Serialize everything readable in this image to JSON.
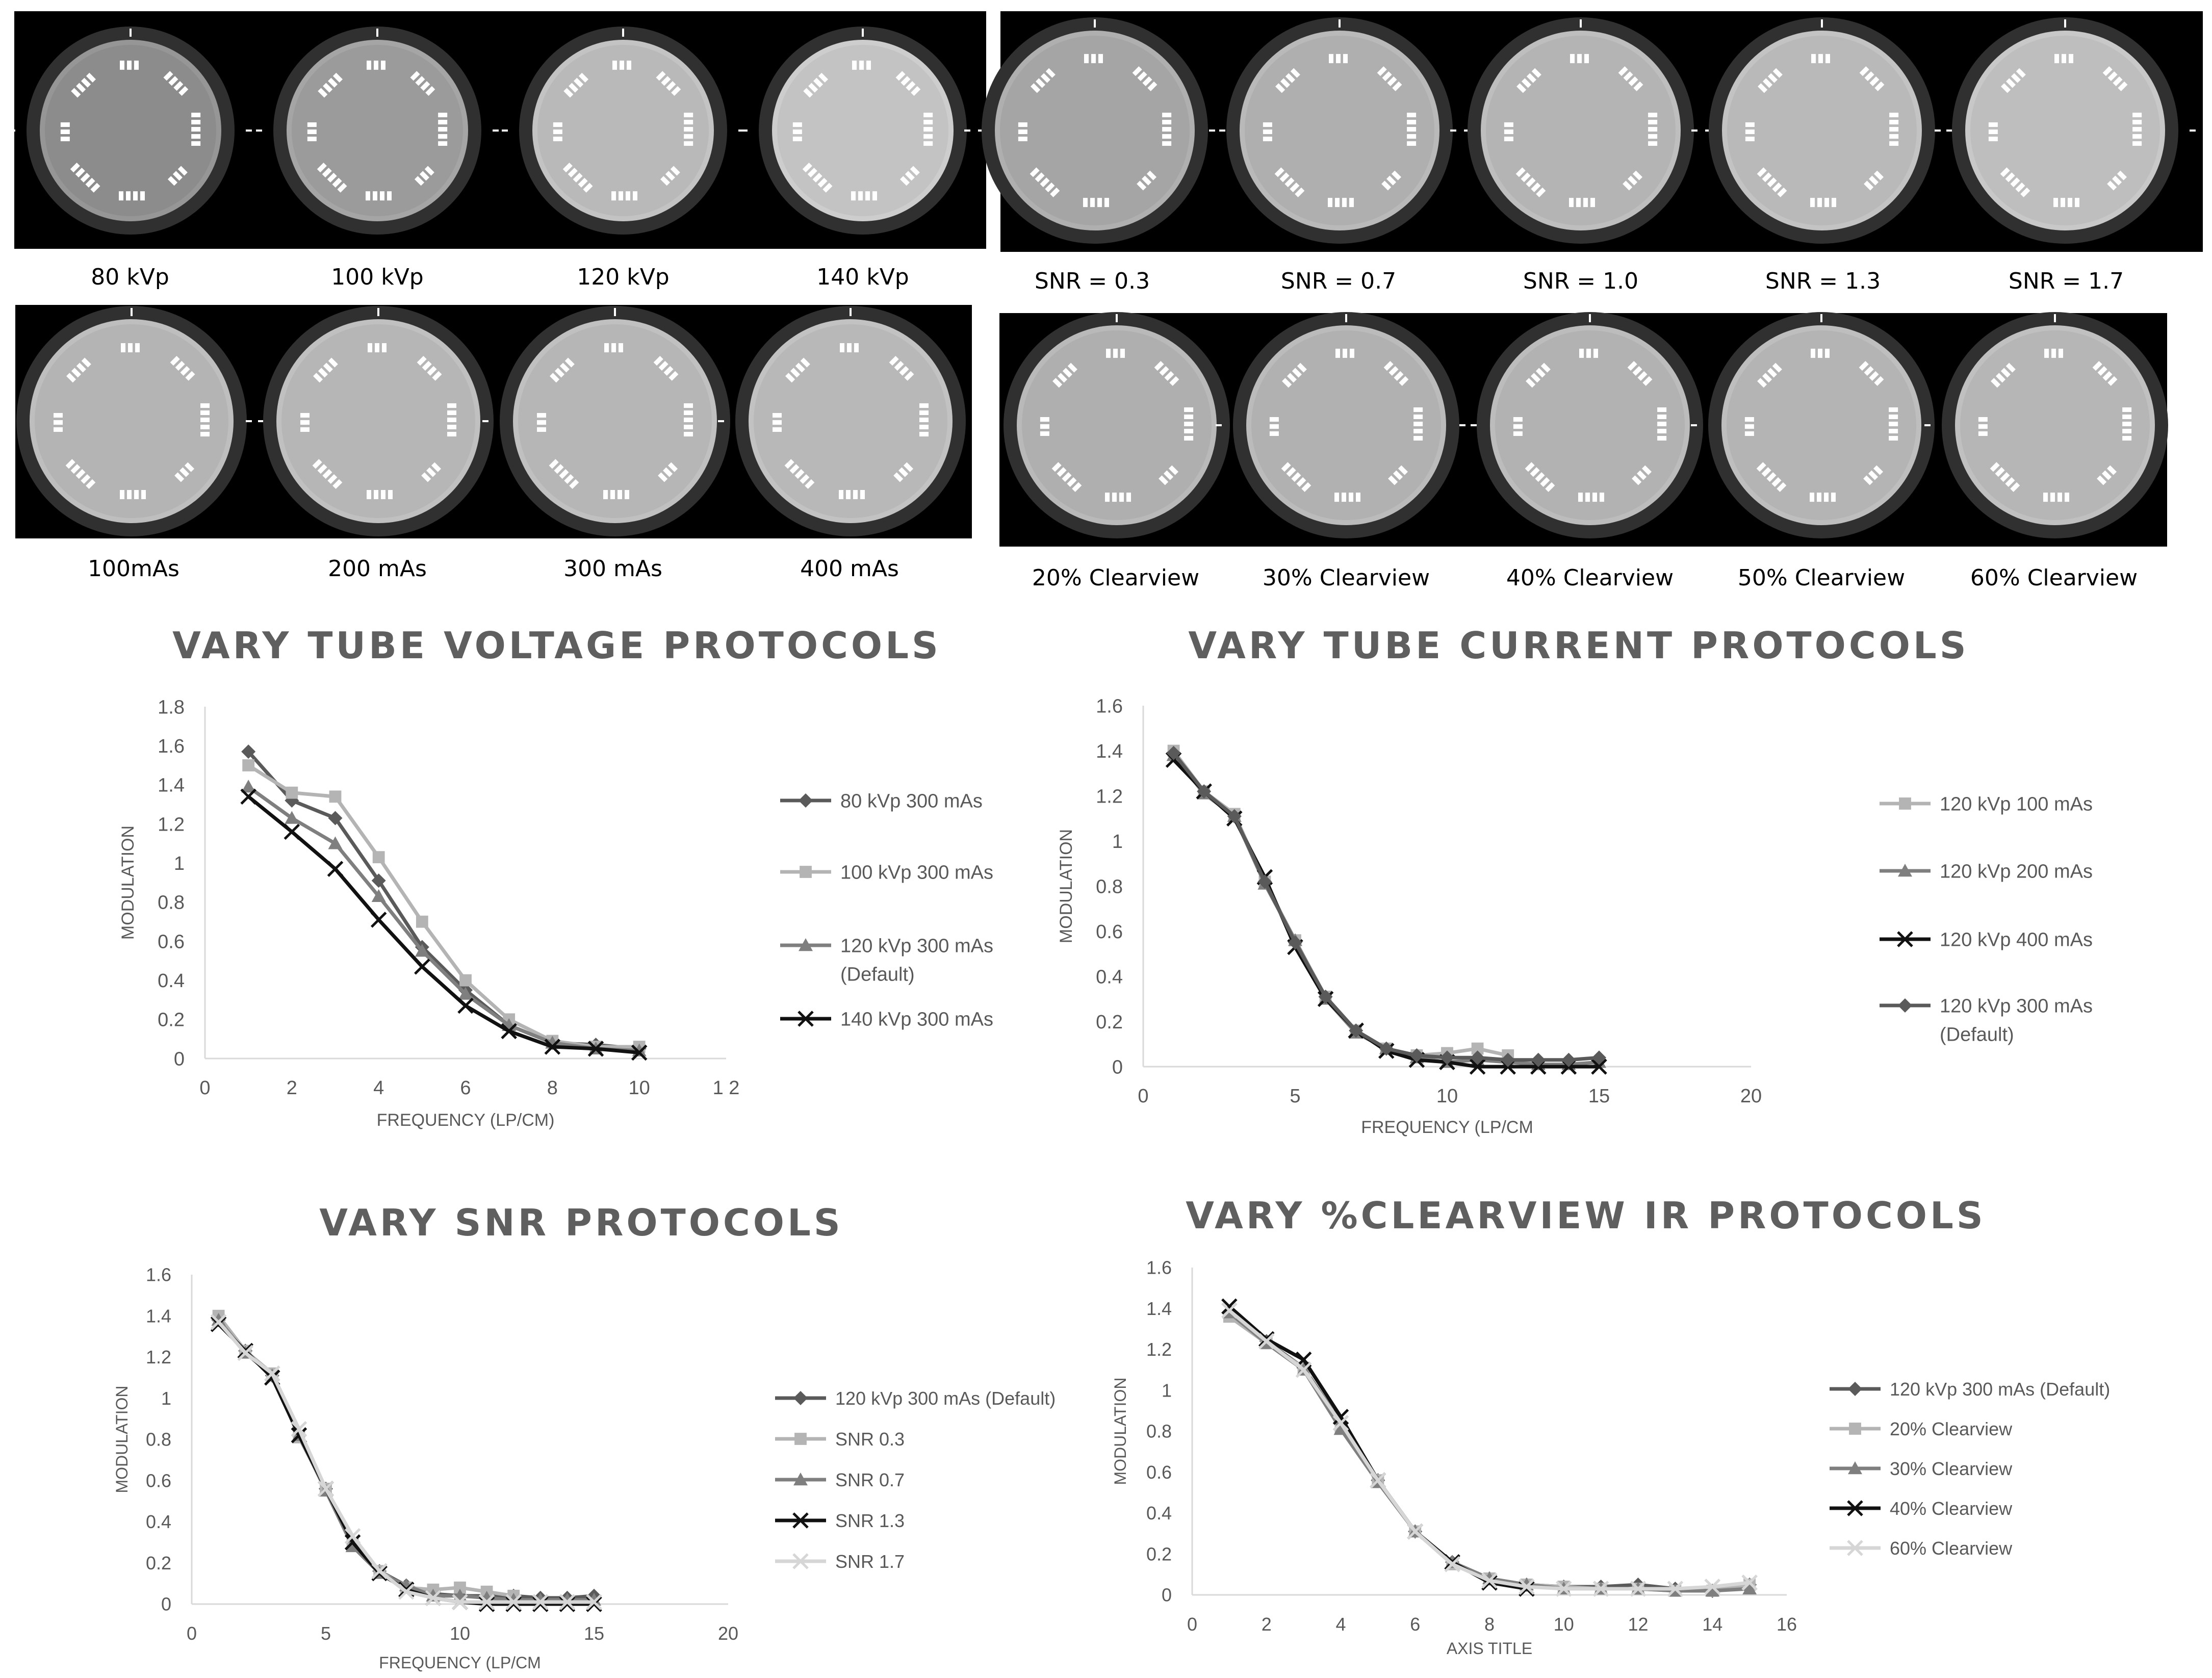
{
  "image_panels": [
    {
      "id": "kvp",
      "labels": [
        "80 kVp",
        "100 kVp",
        "120 kVp",
        "140 kVp"
      ]
    },
    {
      "id": "snr",
      "labels": [
        "SNR = 0.3",
        "SNR = 0.7",
        "SNR = 1.0",
        "SNR = 1.3",
        "SNR = 1.7"
      ]
    },
    {
      "id": "mas",
      "labels": [
        "100mAs",
        "200 mAs",
        "300 mAs",
        "400 mAs"
      ]
    },
    {
      "id": "clearview",
      "labels": [
        "20% Clearview",
        "30% Clearview",
        "40% Clearview",
        "50% Clearview",
        "60% Clearview"
      ]
    }
  ],
  "colors": {
    "dark": "#5a5a5a",
    "light": "#b4b4b4",
    "mid": "#7f7f7f",
    "black": "#111111",
    "lightest": "#d6d6d6",
    "axis": "#d9d9d9",
    "text": "#595959",
    "title": "#5f5f5f"
  },
  "chart_data": [
    {
      "type": "line",
      "title": "VARY TUBE VOLTAGE  PROTOCOLS",
      "xlabel": "FREQUENCY (LP/CM)",
      "ylabel": "MODULATION",
      "xlim": [
        0,
        12
      ],
      "ylim": [
        0,
        1.8
      ],
      "xticks": [
        "0",
        "2",
        "4",
        "6",
        "8",
        "10",
        "1 2"
      ],
      "yticks": [
        "0",
        "0.2",
        "0.4",
        "0.6",
        "0.8",
        "1",
        "1.2",
        "1.4",
        "1.6",
        "1.8"
      ],
      "grid": false,
      "legend_position": "right",
      "series": [
        {
          "name": "80 kVp 300 mAs",
          "marker": "diamond",
          "color": "dark",
          "x": [
            1,
            2,
            3,
            4,
            5,
            6,
            7,
            8,
            9,
            10
          ],
          "y": [
            1.57,
            1.32,
            1.23,
            0.91,
            0.57,
            0.35,
            0.17,
            0.08,
            0.07,
            0.05
          ]
        },
        {
          "name": "100 kVp 300 mAs",
          "marker": "square",
          "color": "light",
          "x": [
            1,
            2,
            3,
            4,
            5,
            6,
            7,
            8,
            9,
            10
          ],
          "y": [
            1.5,
            1.36,
            1.34,
            1.03,
            0.7,
            0.4,
            0.2,
            0.09,
            0.06,
            0.06
          ]
        },
        {
          "name": "120 kVp 300 mAs",
          "name_line2": "(Default)",
          "marker": "triangle",
          "color": "mid",
          "x": [
            1,
            2,
            3,
            4,
            5,
            6,
            7,
            8,
            9,
            10
          ],
          "y": [
            1.39,
            1.23,
            1.1,
            0.83,
            0.55,
            0.33,
            0.17,
            0.08,
            0.05,
            0.04
          ]
        },
        {
          "name": "140 kVp 300 mAs",
          "marker": "x",
          "color": "black",
          "x": [
            1,
            2,
            3,
            4,
            5,
            6,
            7,
            8,
            9,
            10
          ],
          "y": [
            1.34,
            1.16,
            0.97,
            0.71,
            0.47,
            0.27,
            0.14,
            0.06,
            0.05,
            0.03
          ]
        }
      ]
    },
    {
      "type": "line",
      "title": "VARY TUBE CURRENT PROTOCOLS",
      "xlabel": "FREQUENCY (LP/CM",
      "ylabel": "MODULATION",
      "xlim": [
        0,
        20
      ],
      "ylim": [
        0,
        1.6
      ],
      "xticks": [
        "0",
        "5",
        "10",
        "15",
        "20"
      ],
      "yticks": [
        "0",
        "0.2",
        "0.4",
        "0.6",
        "0.8",
        "1",
        "1.2",
        "1.4",
        "1.6"
      ],
      "grid": false,
      "legend_position": "right",
      "series": [
        {
          "name": "120 kVp 100 mAs",
          "marker": "square",
          "color": "light",
          "x": [
            1,
            2,
            3,
            4,
            5,
            6,
            7,
            8,
            9,
            10,
            11,
            12
          ],
          "y": [
            1.4,
            1.22,
            1.12,
            0.82,
            0.56,
            0.31,
            0.16,
            0.08,
            0.05,
            0.06,
            0.08,
            0.05
          ]
        },
        {
          "name": "120 kVp 200 mAs",
          "marker": "triangle",
          "color": "mid",
          "x": [
            1,
            2,
            3,
            4,
            5,
            6,
            7,
            8,
            9,
            10,
            11,
            12,
            13,
            14,
            15
          ],
          "y": [
            1.38,
            1.21,
            1.11,
            0.81,
            0.56,
            0.3,
            0.15,
            0.08,
            0.04,
            0.02,
            0.03,
            0.02,
            0.01,
            0.01,
            0.02
          ]
        },
        {
          "name": "120 kVp 400 mAs",
          "marker": "x",
          "color": "black",
          "x": [
            1,
            2,
            3,
            4,
            5,
            6,
            7,
            8,
            9,
            10,
            11,
            12,
            13,
            14,
            15
          ],
          "y": [
            1.36,
            1.22,
            1.1,
            0.84,
            0.53,
            0.3,
            0.16,
            0.07,
            0.03,
            0.02,
            0.0,
            0.0,
            0.0,
            0.0,
            0.0
          ]
        },
        {
          "name": "120 kVp 300 mAs",
          "name_line2": "(Default)",
          "marker": "diamond",
          "color": "dark",
          "x": [
            1,
            2,
            3,
            4,
            5,
            6,
            7,
            8,
            9,
            10,
            11,
            12,
            13,
            14,
            15
          ],
          "y": [
            1.39,
            1.22,
            1.11,
            0.82,
            0.55,
            0.31,
            0.16,
            0.08,
            0.05,
            0.04,
            0.04,
            0.03,
            0.03,
            0.03,
            0.04
          ]
        }
      ]
    },
    {
      "type": "line",
      "title": "VARY SNR PROTOCOLS",
      "xlabel": "FREQUENCY (LP/CM",
      "ylabel": "MODULATION",
      "xlim": [
        0,
        20
      ],
      "ylim": [
        0,
        1.6
      ],
      "xticks": [
        "0",
        "5",
        "10",
        "15",
        "20"
      ],
      "yticks": [
        "0",
        "0.2",
        "0.4",
        "0.6",
        "0.8",
        "1",
        "1.2",
        "1.4",
        "1.6"
      ],
      "grid": false,
      "legend_position": "right",
      "series": [
        {
          "name": "120 kVp 300 mAs (Default)",
          "marker": "diamond",
          "color": "dark",
          "x": [
            1,
            2,
            3,
            4,
            5,
            6,
            7,
            8,
            9,
            10,
            11,
            12,
            13,
            14,
            15
          ],
          "y": [
            1.38,
            1.23,
            1.11,
            0.82,
            0.56,
            0.3,
            0.16,
            0.09,
            0.05,
            0.04,
            0.04,
            0.04,
            0.03,
            0.03,
            0.04
          ]
        },
        {
          "name": "SNR 0.3",
          "marker": "square",
          "color": "light",
          "x": [
            1,
            2,
            3,
            4,
            5,
            6,
            7,
            8,
            9,
            10,
            11,
            12
          ],
          "y": [
            1.4,
            1.23,
            1.12,
            0.81,
            0.56,
            0.29,
            0.16,
            0.08,
            0.07,
            0.08,
            0.06,
            0.04
          ]
        },
        {
          "name": "SNR 0.7",
          "marker": "triangle",
          "color": "mid",
          "x": [
            1,
            2,
            3,
            4,
            5,
            6,
            7,
            8,
            9,
            10,
            11,
            12,
            13,
            14,
            15
          ],
          "y": [
            1.38,
            1.22,
            1.11,
            0.82,
            0.55,
            0.28,
            0.15,
            0.09,
            0.04,
            0.04,
            0.03,
            0.02,
            0.02,
            0.02,
            0.02
          ]
        },
        {
          "name": "SNR 1.3",
          "marker": "x",
          "color": "black",
          "x": [
            1,
            2,
            3,
            4,
            5,
            6,
            7,
            8,
            9,
            10,
            11,
            12,
            13,
            14,
            15
          ],
          "y": [
            1.36,
            1.23,
            1.1,
            0.82,
            0.56,
            0.3,
            0.15,
            0.07,
            0.03,
            0.01,
            0.0,
            0.0,
            0.0,
            0.0,
            0.0
          ]
        },
        {
          "name": "SNR 1.7",
          "marker": "x",
          "color": "lightest",
          "x": [
            1,
            2,
            3,
            4,
            5,
            6,
            7,
            8,
            9,
            10,
            11,
            12,
            13,
            14,
            15
          ],
          "y": [
            1.37,
            1.22,
            1.12,
            0.85,
            0.56,
            0.33,
            0.16,
            0.06,
            0.03,
            0.01,
            0.01,
            0.01,
            0.01,
            0.01,
            0.01
          ]
        }
      ]
    },
    {
      "type": "line",
      "title": "VARY %CLEARVIEW  IR PROTOCOLS",
      "xlabel": "AXIS TITLE",
      "ylabel": "MODULATION",
      "xlim": [
        0,
        16
      ],
      "ylim": [
        0,
        1.6
      ],
      "xticks": [
        "0",
        "2",
        "4",
        "6",
        "8",
        "10",
        "12",
        "14",
        "16"
      ],
      "yticks": [
        "0",
        "0.2",
        "0.4",
        "0.6",
        "0.8",
        "1",
        "1.2",
        "1.4",
        "1.6"
      ],
      "grid": false,
      "legend_position": "right",
      "series": [
        {
          "name": "120 kVp 300 mAs (Default)",
          "marker": "diamond",
          "color": "dark",
          "x": [
            1,
            2,
            3,
            4,
            5,
            6,
            7,
            8,
            9,
            10,
            11,
            12,
            13,
            14,
            15
          ],
          "y": [
            1.38,
            1.24,
            1.11,
            0.84,
            0.56,
            0.31,
            0.16,
            0.08,
            0.05,
            0.04,
            0.04,
            0.05,
            0.03,
            0.02,
            0.05
          ]
        },
        {
          "name": "20% Clearview",
          "marker": "square",
          "color": "light",
          "x": [
            1,
            2,
            3,
            4,
            5,
            6,
            7,
            8,
            9,
            10,
            11,
            12,
            13,
            14,
            15
          ],
          "y": [
            1.36,
            1.23,
            1.11,
            0.82,
            0.56,
            0.31,
            0.15,
            0.08,
            0.05,
            0.04,
            0.03,
            0.03,
            0.02,
            0.02,
            0.05
          ]
        },
        {
          "name": "30% Clearview",
          "marker": "triangle",
          "color": "mid",
          "x": [
            1,
            2,
            3,
            4,
            5,
            6,
            7,
            8,
            9,
            10,
            11,
            12,
            13,
            14,
            15
          ],
          "y": [
            1.38,
            1.23,
            1.1,
            0.81,
            0.55,
            0.31,
            0.16,
            0.08,
            0.05,
            0.03,
            0.03,
            0.03,
            0.02,
            0.02,
            0.03
          ]
        },
        {
          "name": "40% Clearview",
          "marker": "x",
          "color": "black",
          "x": [
            1,
            2,
            3,
            4,
            5,
            6,
            7,
            8,
            9
          ],
          "y": [
            1.41,
            1.25,
            1.15,
            0.87,
            0.56,
            0.31,
            0.16,
            0.06,
            0.03
          ]
        },
        {
          "name": "60% Clearview",
          "marker": "x",
          "color": "lightest",
          "x": [
            1,
            2,
            3,
            4,
            5,
            6,
            7,
            8,
            9,
            10,
            11,
            12,
            13,
            14,
            15
          ],
          "y": [
            1.39,
            1.24,
            1.1,
            0.84,
            0.56,
            0.31,
            0.15,
            0.07,
            0.04,
            0.03,
            0.03,
            0.03,
            0.03,
            0.04,
            0.06
          ]
        }
      ]
    }
  ]
}
